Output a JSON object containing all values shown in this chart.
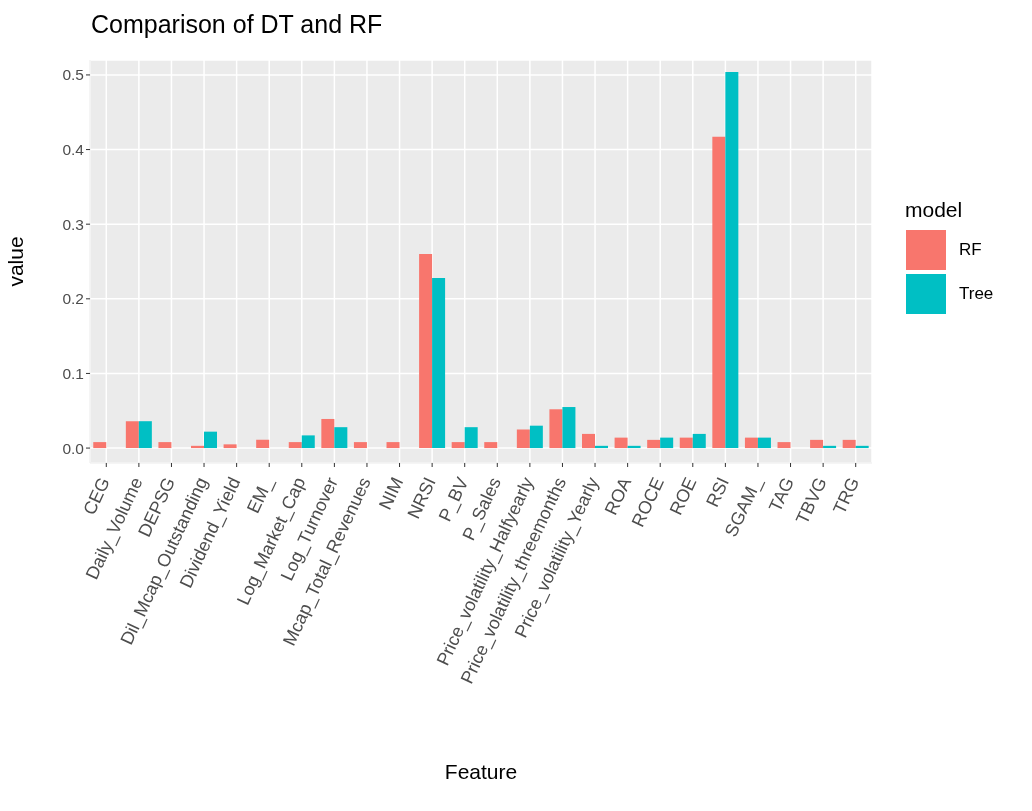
{
  "chart_data": {
    "type": "bar",
    "title": "Comparison of DT and RF",
    "xlabel": "Feature",
    "ylabel": "value",
    "legend_title": "model",
    "categories": [
      "CEG",
      "Daily_Volume",
      "DEPSG",
      "Dil_Mcap_Outstanding",
      "Dividend_Yield",
      "EM_",
      "Log_Market_Cap",
      "Log_Turnover",
      "Mcap_Total_Revenues",
      "NIM",
      "NRSI",
      "P_BV",
      "P_Sales",
      "Price_volatility_Halfyearly",
      "Price_volatility_threemonths",
      "Price_volatility_Yearly",
      "ROA",
      "ROCE",
      "ROE",
      "RSI",
      "SGAM_",
      "TAG",
      "TBVG",
      "TRG"
    ],
    "series": [
      {
        "name": "RF",
        "color": "#f8766d",
        "values": [
          0.008,
          0.036,
          0.008,
          0.003,
          0.005,
          0.011,
          0.008,
          0.039,
          0.008,
          0.008,
          0.26,
          0.008,
          0.008,
          0.025,
          0.052,
          0.019,
          0.014,
          0.011,
          0.014,
          0.417,
          0.014,
          0.008,
          0.011,
          0.011
        ]
      },
      {
        "name": "Tree",
        "color": "#00bfc4",
        "values": [
          null,
          0.036,
          null,
          0.022,
          null,
          null,
          0.017,
          0.028,
          null,
          null,
          0.228,
          0.028,
          null,
          0.03,
          0.055,
          0.003,
          0.003,
          0.014,
          0.019,
          0.504,
          0.014,
          null,
          0.003,
          0.003
        ]
      }
    ],
    "ylim": [
      -0.02,
      0.52
    ],
    "yticks": [
      {
        "value": 0,
        "label": "0.0"
      },
      {
        "value": 0.1,
        "label": "0.1"
      },
      {
        "value": 0.2,
        "label": "0.2"
      },
      {
        "value": 0.3,
        "label": "0.3"
      },
      {
        "value": 0.4,
        "label": "0.4"
      },
      {
        "value": 0.5,
        "label": "0.5"
      }
    ],
    "grid": true,
    "legend": "right"
  }
}
